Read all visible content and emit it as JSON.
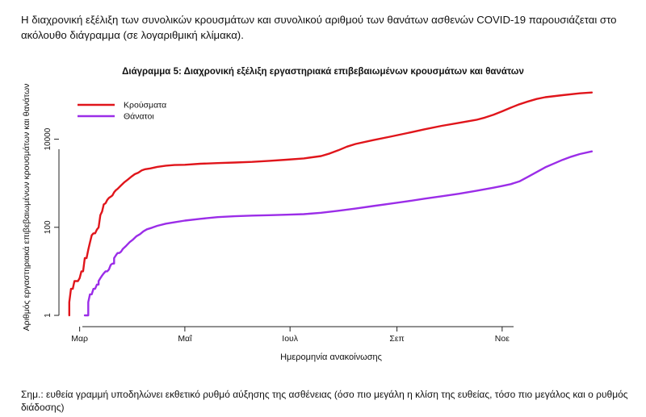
{
  "intro_text": "Η διαχρονική εξέλιξη των συνολικών κρουσμάτων και συνολικού αριθμού των θανάτων ασθενών COVID-19 παρουσιάζεται στο ακόλουθο διάγραμμα (σε λογαριθμική κλίμακα).",
  "note_text": "Σημ.: ευθεία γραμμή υποδηλώνει εκθετικό ρυθμό αύξησης της ασθένειας (όσο πιο μεγάλη η κλίση της ευθείας, τόσο πιο μεγάλος και ο ρυθμός διάδοσης)",
  "chart_data": {
    "type": "line",
    "title": "Διάγραμμα 5: Διαχρονική εξέλιξη εργαστηριακά επιβεβαιωμένων κρουσμάτων και θανάτων",
    "xlabel": "Ημερομηνία ανακοίνωσης",
    "ylabel": "Αριθμός εργαστηριακά επιβεβαιωμένων κρουσμάτων και θανάτων",
    "y_scale": "log",
    "ylim": [
      1,
      100000
    ],
    "x_ticks": [
      {
        "label": "Μαρ",
        "day": 0
      },
      {
        "label": "Μαΐ",
        "day": 61
      },
      {
        "label": "Ιουλ",
        "day": 122
      },
      {
        "label": "Σεπ",
        "day": 184
      },
      {
        "label": "Νοε",
        "day": 245
      }
    ],
    "xlim": [
      -12,
      305
    ],
    "y_ticks": [
      {
        "label": "1",
        "value": 1
      },
      {
        "label": "100",
        "value": 100
      },
      {
        "label": "10000",
        "value": 10000
      }
    ],
    "grid": false,
    "legend_position": "top-left",
    "series": [
      {
        "name": "Κρούσματα",
        "color": "#e0151b",
        "points": [
          [
            -6,
            1
          ],
          [
            -6,
            2
          ],
          [
            -5,
            4
          ],
          [
            -4,
            4
          ],
          [
            -3,
            6
          ],
          [
            -1,
            6
          ],
          [
            0,
            7
          ],
          [
            1,
            10
          ],
          [
            2,
            10
          ],
          [
            3,
            20
          ],
          [
            4,
            20
          ],
          [
            5,
            31
          ],
          [
            6,
            45
          ],
          [
            7,
            66
          ],
          [
            8,
            73
          ],
          [
            9,
            73
          ],
          [
            10,
            89
          ],
          [
            11,
            99
          ],
          [
            12,
            190
          ],
          [
            13,
            228
          ],
          [
            14,
            331
          ],
          [
            15,
            352
          ],
          [
            16,
            418
          ],
          [
            17,
            464
          ],
          [
            18,
            495
          ],
          [
            19,
            530
          ],
          [
            20,
            624
          ],
          [
            21,
            695
          ],
          [
            22,
            743
          ],
          [
            24,
            892
          ],
          [
            26,
            1061
          ],
          [
            28,
            1212
          ],
          [
            30,
            1415
          ],
          [
            32,
            1613
          ],
          [
            34,
            1735
          ],
          [
            36,
            1955
          ],
          [
            38,
            2081
          ],
          [
            41,
            2170
          ],
          [
            45,
            2351
          ],
          [
            50,
            2506
          ],
          [
            55,
            2591
          ],
          [
            61,
            2632
          ],
          [
            70,
            2770
          ],
          [
            80,
            2873
          ],
          [
            90,
            2952
          ],
          [
            100,
            3058
          ],
          [
            110,
            3227
          ],
          [
            120,
            3432
          ],
          [
            130,
            3672
          ],
          [
            140,
            4140
          ],
          [
            145,
            4737
          ],
          [
            150,
            5623
          ],
          [
            155,
            6797
          ],
          [
            160,
            7800
          ],
          [
            170,
            9500
          ],
          [
            180,
            11400
          ],
          [
            190,
            13800
          ],
          [
            200,
            16800
          ],
          [
            210,
            20100
          ],
          [
            220,
            23500
          ],
          [
            230,
            27500
          ],
          [
            235,
            31000
          ],
          [
            240,
            36000
          ],
          [
            245,
            43000
          ],
          [
            250,
            52000
          ],
          [
            255,
            62000
          ],
          [
            260,
            72000
          ],
          [
            265,
            82000
          ],
          [
            270,
            90000
          ],
          [
            280,
            100000
          ],
          [
            290,
            110000
          ],
          [
            297,
            115000
          ]
        ]
      },
      {
        "name": "Θάνατοι",
        "color": "#9b2de8",
        "points": [
          [
            3,
            1
          ],
          [
            5,
            1
          ],
          [
            5,
            2
          ],
          [
            6,
            3
          ],
          [
            7,
            3
          ],
          [
            8,
            4
          ],
          [
            9,
            4
          ],
          [
            10,
            5
          ],
          [
            11,
            5
          ],
          [
            11,
            6
          ],
          [
            12,
            7
          ],
          [
            13,
            8
          ],
          [
            14,
            9
          ],
          [
            15,
            10
          ],
          [
            16,
            10
          ],
          [
            17,
            11
          ],
          [
            18,
            14
          ],
          [
            19,
            15
          ],
          [
            20,
            15
          ],
          [
            20,
            20
          ],
          [
            21,
            23
          ],
          [
            22,
            26
          ],
          [
            23,
            26
          ],
          [
            24,
            28
          ],
          [
            25,
            32
          ],
          [
            27,
            38
          ],
          [
            29,
            46
          ],
          [
            31,
            53
          ],
          [
            33,
            63
          ],
          [
            35,
            70
          ],
          [
            37,
            81
          ],
          [
            39,
            90
          ],
          [
            42,
            98
          ],
          [
            45,
            108
          ],
          [
            50,
            121
          ],
          [
            55,
            130
          ],
          [
            61,
            142
          ],
          [
            70,
            156
          ],
          [
            80,
            170
          ],
          [
            90,
            178
          ],
          [
            100,
            184
          ],
          [
            110,
            188
          ],
          [
            120,
            193
          ],
          [
            130,
            199
          ],
          [
            140,
            214
          ],
          [
            150,
            237
          ],
          [
            160,
            266
          ],
          [
            170,
            303
          ],
          [
            180,
            342
          ],
          [
            190,
            388
          ],
          [
            200,
            446
          ],
          [
            210,
            508
          ],
          [
            220,
            578
          ],
          [
            230,
            673
          ],
          [
            240,
            792
          ],
          [
            245,
            866
          ],
          [
            250,
            953
          ],
          [
            255,
            1100
          ],
          [
            260,
            1400
          ],
          [
            265,
            1800
          ],
          [
            270,
            2300
          ],
          [
            275,
            2800
          ],
          [
            280,
            3400
          ],
          [
            285,
            4000
          ],
          [
            290,
            4600
          ],
          [
            297,
            5300
          ]
        ]
      }
    ]
  }
}
